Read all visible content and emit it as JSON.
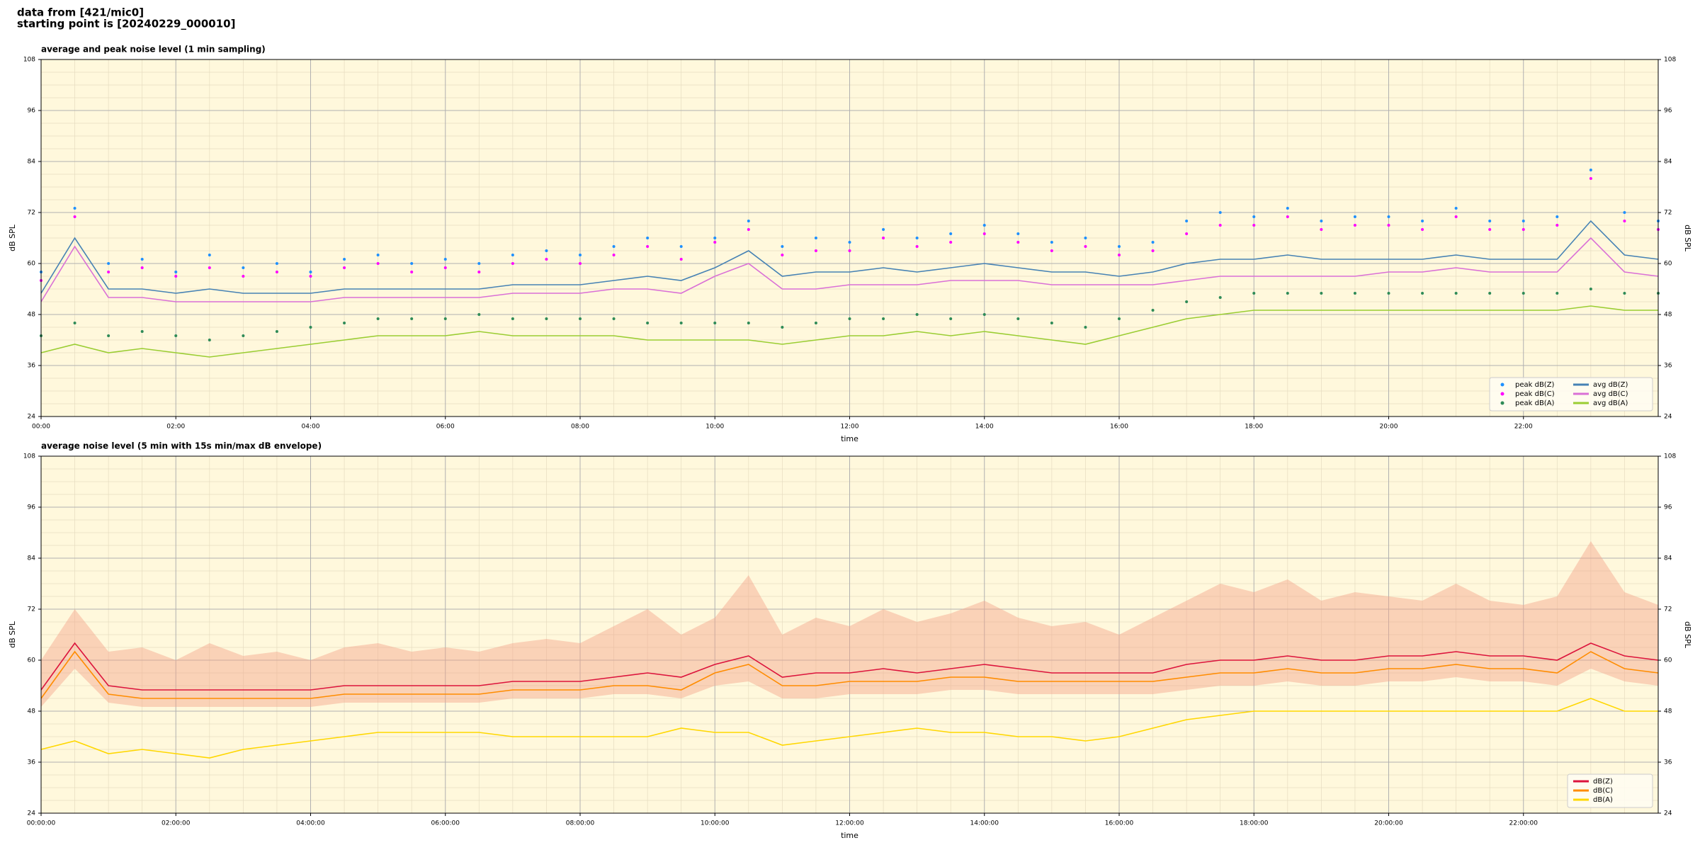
{
  "header": {
    "lines": [
      "data from [421/mic0]",
      "starting point is [20240229_000010]"
    ]
  },
  "chart_data": [
    {
      "type": "line",
      "title": "average and peak noise level (1 min sampling)",
      "xlabel": "time",
      "ylabel": "dB SPL",
      "background": "#fff8dc",
      "grid": true,
      "legend": "lower right",
      "legend_columns": 2,
      "xlim": [
        0,
        24
      ],
      "xticks": [
        {
          "value": 0,
          "label": "00:00"
        },
        {
          "value": 2,
          "label": "02:00"
        },
        {
          "value": 4,
          "label": "04:00"
        },
        {
          "value": 6,
          "label": "06:00"
        },
        {
          "value": 8,
          "label": "08:00"
        },
        {
          "value": 10,
          "label": "10:00"
        },
        {
          "value": 12,
          "label": "12:00"
        },
        {
          "value": 14,
          "label": "14:00"
        },
        {
          "value": 16,
          "label": "16:00"
        },
        {
          "value": 18,
          "label": "18:00"
        },
        {
          "value": 20,
          "label": "20:00"
        },
        {
          "value": 22,
          "label": "22:00"
        }
      ],
      "ylim": [
        24,
        108
      ],
      "yticks": [
        24,
        36,
        48,
        60,
        72,
        84,
        96,
        108
      ],
      "x": [
        0,
        0.5,
        1,
        1.5,
        2,
        2.5,
        3,
        3.5,
        4,
        4.5,
        5,
        5.5,
        6,
        6.5,
        7,
        7.5,
        8,
        8.5,
        9,
        9.5,
        10,
        10.5,
        11,
        11.5,
        12,
        12.5,
        13,
        13.5,
        14,
        14.5,
        15,
        15.5,
        16,
        16.5,
        17,
        17.5,
        18,
        18.5,
        19,
        19.5,
        20,
        20.5,
        21,
        21.5,
        22,
        22.5,
        23,
        23.5,
        24
      ],
      "series": [
        {
          "name": "peak dB(Z)",
          "type": "scatter",
          "color": "#1e90ff",
          "values": [
            58,
            73,
            60,
            61,
            58,
            62,
            59,
            60,
            58,
            61,
            62,
            60,
            61,
            60,
            62,
            63,
            62,
            64,
            66,
            64,
            66,
            70,
            64,
            66,
            65,
            68,
            66,
            67,
            69,
            67,
            65,
            66,
            64,
            65,
            70,
            72,
            71,
            73,
            70,
            71,
            71,
            70,
            73,
            70,
            70,
            71,
            82,
            72,
            70
          ]
        },
        {
          "name": "peak dB(C)",
          "type": "scatter",
          "color": "#ff00ff",
          "values": [
            56,
            71,
            58,
            59,
            57,
            59,
            57,
            58,
            57,
            59,
            60,
            58,
            59,
            58,
            60,
            61,
            60,
            62,
            64,
            61,
            65,
            68,
            62,
            63,
            63,
            66,
            64,
            65,
            67,
            65,
            63,
            64,
            62,
            63,
            67,
            69,
            69,
            71,
            68,
            69,
            69,
            68,
            71,
            68,
            68,
            69,
            80,
            70,
            68
          ]
        },
        {
          "name": "peak dB(A)",
          "type": "scatter",
          "color": "#2e8b57",
          "values": [
            43,
            46,
            43,
            44,
            43,
            42,
            43,
            44,
            45,
            46,
            47,
            47,
            47,
            48,
            47,
            47,
            47,
            47,
            46,
            46,
            46,
            46,
            45,
            46,
            47,
            47,
            48,
            47,
            48,
            47,
            46,
            45,
            47,
            49,
            51,
            52,
            53,
            53,
            53,
            53,
            53,
            53,
            53,
            53,
            53,
            53,
            54,
            53,
            53
          ]
        },
        {
          "name": "avg dB(Z)",
          "type": "line",
          "color": "#4682b4",
          "values": [
            53,
            66,
            54,
            54,
            53,
            54,
            53,
            53,
            53,
            54,
            54,
            54,
            54,
            54,
            55,
            55,
            55,
            56,
            57,
            56,
            59,
            63,
            57,
            58,
            58,
            59,
            58,
            59,
            60,
            59,
            58,
            58,
            57,
            58,
            60,
            61,
            61,
            62,
            61,
            61,
            61,
            61,
            62,
            61,
            61,
            61,
            70,
            62,
            61
          ]
        },
        {
          "name": "avg dB(C)",
          "type": "line",
          "color": "#da70d6",
          "values": [
            51,
            64,
            52,
            52,
            51,
            51,
            51,
            51,
            51,
            52,
            52,
            52,
            52,
            52,
            53,
            53,
            53,
            54,
            54,
            53,
            57,
            60,
            54,
            54,
            55,
            55,
            55,
            56,
            56,
            56,
            55,
            55,
            55,
            55,
            56,
            57,
            57,
            57,
            57,
            57,
            58,
            58,
            59,
            58,
            58,
            58,
            66,
            58,
            57
          ]
        },
        {
          "name": "avg dB(A)",
          "type": "line",
          "color": "#9acd32",
          "values": [
            39,
            41,
            39,
            40,
            39,
            38,
            39,
            40,
            41,
            42,
            43,
            43,
            43,
            44,
            43,
            43,
            43,
            43,
            42,
            42,
            42,
            42,
            41,
            42,
            43,
            43,
            44,
            43,
            44,
            43,
            42,
            41,
            43,
            45,
            47,
            48,
            49,
            49,
            49,
            49,
            49,
            49,
            49,
            49,
            49,
            49,
            50,
            49,
            49
          ]
        }
      ]
    },
    {
      "type": "line",
      "title": "average noise level (5 min with 15s min/max dB envelope)",
      "xlabel": "time",
      "ylabel": "dB SPL",
      "background": "#fff8dc",
      "grid": true,
      "legend": "lower right",
      "legend_columns": 1,
      "xlim": [
        0,
        24
      ],
      "xticks": [
        {
          "value": 0,
          "label": "00:00:00"
        },
        {
          "value": 2,
          "label": "02:00:00"
        },
        {
          "value": 4,
          "label": "04:00:00"
        },
        {
          "value": 6,
          "label": "06:00:00"
        },
        {
          "value": 8,
          "label": "08:00:00"
        },
        {
          "value": 10,
          "label": "10:00:00"
        },
        {
          "value": 12,
          "label": "12:00:00"
        },
        {
          "value": 14,
          "label": "14:00:00"
        },
        {
          "value": 16,
          "label": "16:00:00"
        },
        {
          "value": 18,
          "label": "18:00:00"
        },
        {
          "value": 20,
          "label": "20:00:00"
        },
        {
          "value": 22,
          "label": "22:00:00"
        }
      ],
      "ylim": [
        24,
        108
      ],
      "yticks": [
        24,
        36,
        48,
        60,
        72,
        84,
        96,
        108
      ],
      "x": [
        0,
        0.5,
        1,
        1.5,
        2,
        2.5,
        3,
        3.5,
        4,
        4.5,
        5,
        5.5,
        6,
        6.5,
        7,
        7.5,
        8,
        8.5,
        9,
        9.5,
        10,
        10.5,
        11,
        11.5,
        12,
        12.5,
        13,
        13.5,
        14,
        14.5,
        15,
        15.5,
        16,
        16.5,
        17,
        17.5,
        18,
        18.5,
        19,
        19.5,
        20,
        20.5,
        21,
        21.5,
        22,
        22.5,
        23,
        23.5,
        24
      ],
      "envelope": {
        "color": "#f4a58a",
        "min": [
          49,
          58,
          50,
          49,
          49,
          49,
          49,
          49,
          49,
          50,
          50,
          50,
          50,
          50,
          51,
          51,
          51,
          52,
          52,
          51,
          54,
          55,
          51,
          51,
          52,
          52,
          52,
          53,
          53,
          52,
          52,
          52,
          52,
          52,
          53,
          54,
          54,
          55,
          54,
          54,
          55,
          55,
          56,
          55,
          55,
          54,
          58,
          55,
          54
        ],
        "max": [
          60,
          72,
          62,
          63,
          60,
          64,
          61,
          62,
          60,
          63,
          64,
          62,
          63,
          62,
          64,
          65,
          64,
          68,
          72,
          66,
          70,
          80,
          66,
          70,
          68,
          72,
          69,
          71,
          74,
          70,
          68,
          69,
          66,
          70,
          74,
          78,
          76,
          79,
          74,
          76,
          75,
          74,
          78,
          74,
          73,
          75,
          88,
          76,
          73
        ]
      },
      "series": [
        {
          "name": "dB(Z)",
          "type": "line",
          "color": "#dc143c",
          "values": [
            53,
            64,
            54,
            53,
            53,
            53,
            53,
            53,
            53,
            54,
            54,
            54,
            54,
            54,
            55,
            55,
            55,
            56,
            57,
            56,
            59,
            61,
            56,
            57,
            57,
            58,
            57,
            58,
            59,
            58,
            57,
            57,
            57,
            57,
            59,
            60,
            60,
            61,
            60,
            60,
            61,
            61,
            62,
            61,
            61,
            60,
            64,
            61,
            60
          ]
        },
        {
          "name": "dB(C)",
          "type": "line",
          "color": "#ff8c00",
          "values": [
            51,
            62,
            52,
            51,
            51,
            51,
            51,
            51,
            51,
            52,
            52,
            52,
            52,
            52,
            53,
            53,
            53,
            54,
            54,
            53,
            57,
            59,
            54,
            54,
            55,
            55,
            55,
            56,
            56,
            55,
            55,
            55,
            55,
            55,
            56,
            57,
            57,
            58,
            57,
            57,
            58,
            58,
            59,
            58,
            58,
            57,
            62,
            58,
            57
          ]
        },
        {
          "name": "dB(A)",
          "type": "line",
          "color": "#ffd700",
          "values": [
            39,
            41,
            38,
            39,
            38,
            37,
            39,
            40,
            41,
            42,
            43,
            43,
            43,
            43,
            42,
            42,
            42,
            42,
            42,
            44,
            43,
            43,
            40,
            41,
            42,
            43,
            44,
            43,
            43,
            42,
            42,
            41,
            42,
            44,
            46,
            47,
            48,
            48,
            48,
            48,
            48,
            48,
            48,
            48,
            48,
            48,
            51,
            48,
            48
          ]
        }
      ]
    }
  ]
}
